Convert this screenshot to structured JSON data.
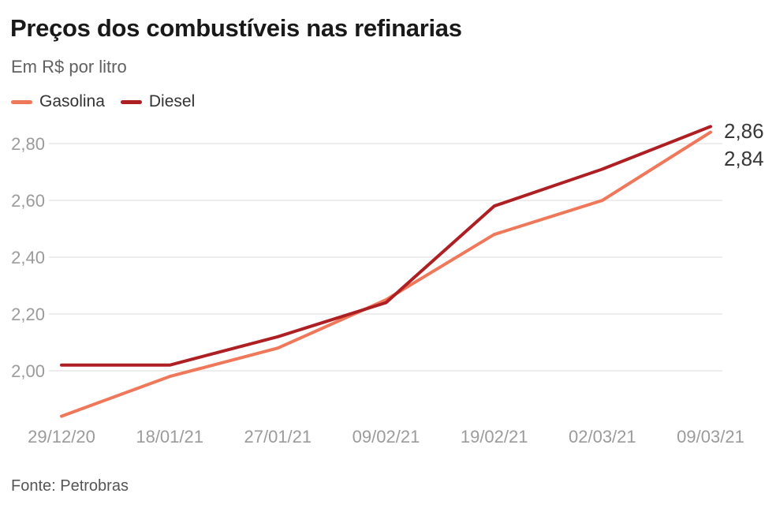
{
  "header": {
    "title": "Preços dos combustíveis nas refinarias",
    "subtitle": "Em R$ por litro"
  },
  "legend": [
    {
      "label": "Gasolina",
      "color": "#F0785A"
    },
    {
      "label": "Diesel",
      "color": "#AE1F23"
    }
  ],
  "footer": {
    "source": "Fonte: Petrobras"
  },
  "colors": {
    "grid": "#E7E7E7",
    "tick_label": "#9B9B9B",
    "annotation": "#383838"
  },
  "chart_data": {
    "type": "line",
    "title": "Preços dos combustíveis nas refinarias",
    "ylabel": "Em R$ por litro",
    "x": [
      "29/12/20",
      "18/01/21",
      "27/01/21",
      "09/02/21",
      "19/02/21",
      "02/03/21",
      "09/03/21"
    ],
    "series": [
      {
        "name": "Gasolina",
        "color": "#F0785A",
        "values": [
          1.84,
          1.98,
          2.08,
          2.25,
          2.48,
          2.6,
          2.84
        ],
        "end_label": "2,84"
      },
      {
        "name": "Diesel",
        "color": "#AE1F23",
        "values": [
          2.02,
          2.02,
          2.12,
          2.24,
          2.58,
          2.71,
          2.86
        ],
        "end_label": "2,86"
      }
    ],
    "y_ticks": [
      "2,00",
      "2,20",
      "2,40",
      "2,60",
      "2,80"
    ],
    "y_tick_values": [
      2.0,
      2.2,
      2.4,
      2.6,
      2.8
    ],
    "ylim": [
      1.82,
      2.9
    ],
    "grid": true,
    "legend_position": "top-left"
  }
}
